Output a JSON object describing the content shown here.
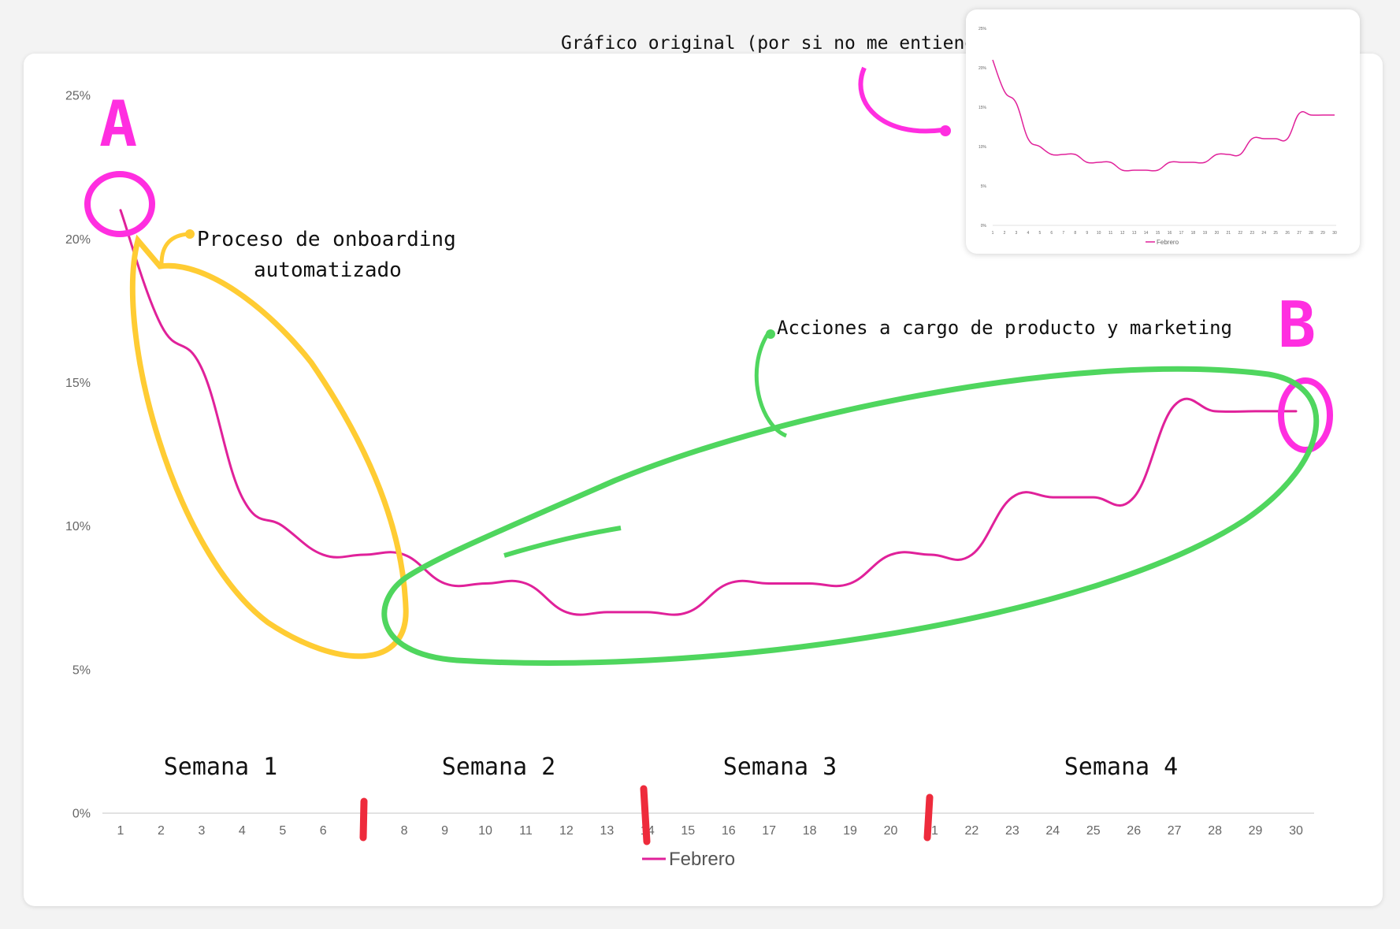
{
  "colors": {
    "series": "#e0219a",
    "grid": "#d9d9d9",
    "magenta": "#ff2ee0",
    "yellow": "#ffcc33",
    "green": "#4fd65e",
    "red": "#ee2b3c"
  },
  "chart_data": {
    "type": "line",
    "x": [
      1,
      2,
      3,
      4,
      5,
      6,
      7,
      8,
      9,
      10,
      11,
      12,
      13,
      14,
      15,
      16,
      17,
      18,
      19,
      20,
      21,
      22,
      23,
      24,
      25,
      26,
      27,
      28,
      29,
      30
    ],
    "series": [
      {
        "name": "Febrero",
        "values": [
          21,
          17,
          15.5,
          11,
          10,
          9,
          9,
          9,
          8,
          8,
          8,
          7,
          7,
          7,
          7,
          8,
          8,
          8,
          8,
          9,
          9,
          9,
          11,
          11,
          11,
          11,
          14.2,
          14,
          14,
          14
        ]
      }
    ],
    "ylim": [
      0,
      25
    ],
    "yticks": [
      "0%",
      "5%",
      "10%",
      "15%",
      "20%",
      "25%"
    ],
    "xticks": [
      "1",
      "2",
      "3",
      "4",
      "5",
      "6",
      "7",
      "8",
      "9",
      "10",
      "11",
      "12",
      "13",
      "14",
      "15",
      "16",
      "17",
      "18",
      "19",
      "20",
      "21",
      "22",
      "23",
      "24",
      "25",
      "26",
      "27",
      "28",
      "29",
      "30"
    ],
    "legend": "bottom",
    "grid": "baseline only"
  },
  "annotations": {
    "label_a": "A",
    "label_b": "B",
    "onboarding_line1": "Proceso de onboarding",
    "onboarding_line2": "automatizado",
    "actions": "Acciones a cargo de producto y marketing",
    "original_caption": "Gráfico original (por si no me entiendes)",
    "weeks": [
      "Semana 1",
      "Semana 2",
      "Semana 3",
      "Semana 4"
    ]
  },
  "inset": {
    "yticks": [
      "0%",
      "5%",
      "10%",
      "15%",
      "20%",
      "25%"
    ],
    "legend": "Febrero"
  }
}
